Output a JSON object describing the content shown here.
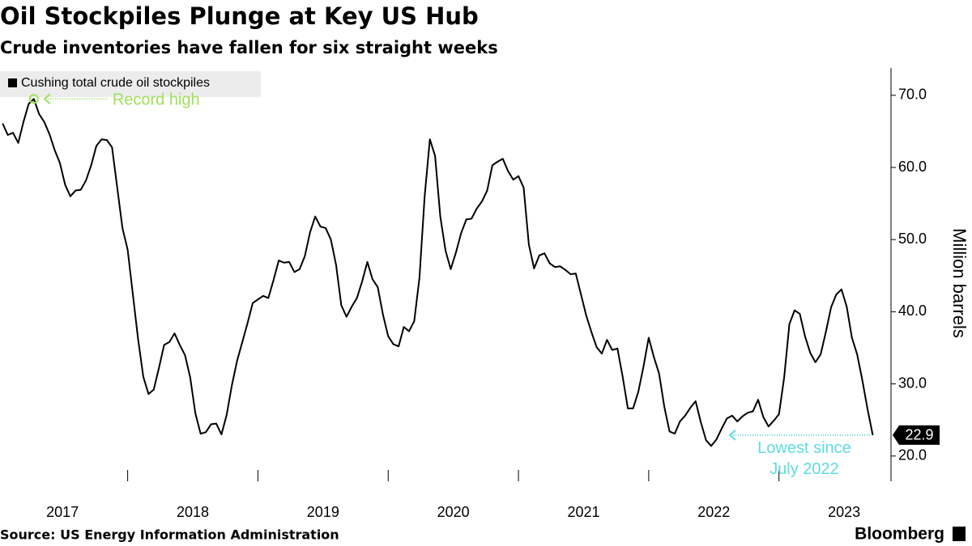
{
  "chart_data": {
    "type": "line",
    "title": "Oil Stockpiles Plunge at Key US Hub",
    "subtitle": "Crude inventories have fallen for six straight weeks",
    "y_label": "Million barrels",
    "source": "Source: US Energy Information Administration",
    "brand": "Bloomberg",
    "annotations": [
      {
        "text": "Record high",
        "color": "#9ee05a"
      },
      {
        "text": [
          "Lowest since",
          "July 2022"
        ],
        "color": "#5ddbe3"
      }
    ],
    "x": [
      2017.04,
      2017.08,
      2017.12,
      2017.16,
      2017.2,
      2017.24,
      2017.28,
      2017.32,
      2017.36,
      2017.4,
      2017.44,
      2017.48,
      2017.52,
      2017.56,
      2017.6,
      2017.64,
      2017.68,
      2017.72,
      2017.76,
      2017.8,
      2017.84,
      2017.88,
      2017.92,
      2017.96,
      2018,
      2018.04,
      2018.08,
      2018.12,
      2018.16,
      2018.2,
      2018.24,
      2018.28,
      2018.32,
      2018.36,
      2018.4,
      2018.44,
      2018.48,
      2018.52,
      2018.56,
      2018.6,
      2018.64,
      2018.68,
      2018.72,
      2018.76,
      2018.8,
      2018.84,
      2018.88,
      2018.92,
      2018.96,
      2019,
      2019.04,
      2019.08,
      2019.12,
      2019.16,
      2019.2,
      2019.24,
      2019.28,
      2019.32,
      2019.36,
      2019.4,
      2019.44,
      2019.48,
      2019.52,
      2019.56,
      2019.6,
      2019.64,
      2019.68,
      2019.72,
      2019.76,
      2019.8,
      2019.84,
      2019.88,
      2019.92,
      2019.96,
      2020,
      2020.04,
      2020.08,
      2020.12,
      2020.16,
      2020.2,
      2020.24,
      2020.28,
      2020.32,
      2020.36,
      2020.4,
      2020.44,
      2020.48,
      2020.52,
      2020.56,
      2020.6,
      2020.64,
      2020.68,
      2020.72,
      2020.76,
      2020.8,
      2020.84,
      2020.88,
      2020.92,
      2020.96,
      2021,
      2021.04,
      2021.08,
      2021.12,
      2021.16,
      2021.2,
      2021.24,
      2021.28,
      2021.32,
      2021.36,
      2021.4,
      2021.44,
      2021.48,
      2021.52,
      2021.56,
      2021.6,
      2021.64,
      2021.68,
      2021.72,
      2021.76,
      2021.8,
      2021.84,
      2021.88,
      2021.92,
      2021.96,
      2022,
      2022.04,
      2022.08,
      2022.12,
      2022.16,
      2022.2,
      2022.24,
      2022.28,
      2022.32,
      2022.36,
      2022.4,
      2022.44,
      2022.48,
      2022.52,
      2022.56,
      2022.6,
      2022.64,
      2022.68,
      2022.72,
      2022.76,
      2022.8,
      2022.84,
      2022.88,
      2022.92,
      2022.96,
      2023,
      2023.04,
      2023.08,
      2023.12,
      2023.16,
      2023.2,
      2023.24,
      2023.28,
      2023.32,
      2023.36,
      2023.4,
      2023.44,
      2023.48,
      2023.52,
      2023.56,
      2023.6,
      2023.64,
      2023.68,
      2023.72
    ],
    "series": [
      {
        "name": "Cushing total crude oil stockpiles",
        "color": "#000000",
        "values": [
          66.1,
          64.5,
          64.8,
          63.4,
          66.3,
          68.8,
          69.5,
          67.4,
          66.3,
          64.6,
          62.4,
          60.6,
          57.6,
          56.0,
          56.8,
          56.9,
          58.2,
          60.3,
          63.0,
          63.9,
          63.8,
          62.8,
          57.2,
          51.6,
          48.6,
          42.4,
          36.2,
          31.0,
          28.6,
          29.2,
          32.2,
          35.4,
          35.8,
          37.0,
          35.4,
          34.0,
          30.9,
          25.9,
          23.1,
          23.3,
          24.4,
          24.5,
          23.0,
          25.7,
          29.8,
          33.2,
          35.8,
          38.4,
          41.2,
          41.7,
          42.2,
          41.9,
          44.4,
          47.1,
          46.8,
          46.9,
          45.5,
          45.9,
          47.7,
          51.0,
          53.2,
          51.8,
          51.6,
          50.0,
          46.5,
          40.9,
          39.3,
          40.7,
          41.9,
          44.2,
          46.9,
          44.5,
          43.4,
          39.6,
          36.6,
          35.5,
          35.2,
          37.9,
          37.3,
          38.7,
          44.7,
          56.0,
          63.9,
          61.6,
          53.2,
          48.5,
          45.9,
          48.2,
          50.9,
          52.8,
          52.9,
          54.3,
          55.3,
          56.8,
          60.3,
          60.8,
          61.2,
          59.5,
          58.3,
          58.8,
          57.2,
          49.3,
          46.0,
          47.8,
          48.1,
          46.7,
          46.2,
          46.3,
          45.8,
          45.2,
          45.3,
          42.4,
          39.5,
          37.2,
          35.1,
          34.2,
          36.1,
          34.7,
          34.9,
          31.0,
          26.6,
          26.6,
          28.9,
          32.4,
          36.4,
          33.7,
          31.4,
          26.8,
          23.4,
          23.1,
          24.8,
          25.6,
          26.7,
          27.6,
          24.7,
          22.2,
          21.4,
          22.3,
          23.8,
          25.2,
          25.6,
          24.8,
          25.5,
          26.0,
          26.2,
          27.8,
          25.4,
          24.1,
          24.9,
          25.8,
          30.9,
          38.3,
          40.2,
          39.7,
          36.6,
          34.3,
          33.0,
          34.1,
          37.2,
          40.6,
          42.4,
          43.1,
          40.7,
          36.4,
          34.1,
          30.5,
          26.5,
          22.9
        ]
      }
    ],
    "xlim": [
      2017.02,
      2023.86
    ],
    "xticks": [
      2017,
      2018,
      2019,
      2020,
      2021,
      2022,
      2023
    ],
    "ylim": [
      16.5,
      71.1
    ],
    "yticks": [
      {
        "value": 20,
        "label": "20.0"
      },
      {
        "value": 30,
        "label": "30.0"
      },
      {
        "value": 40,
        "label": "40.0"
      },
      {
        "value": 50,
        "label": "50.0"
      },
      {
        "value": 60,
        "label": "60.0"
      },
      {
        "value": 70,
        "label": "70.0"
      }
    ],
    "grid": false,
    "legend": "top-left"
  }
}
